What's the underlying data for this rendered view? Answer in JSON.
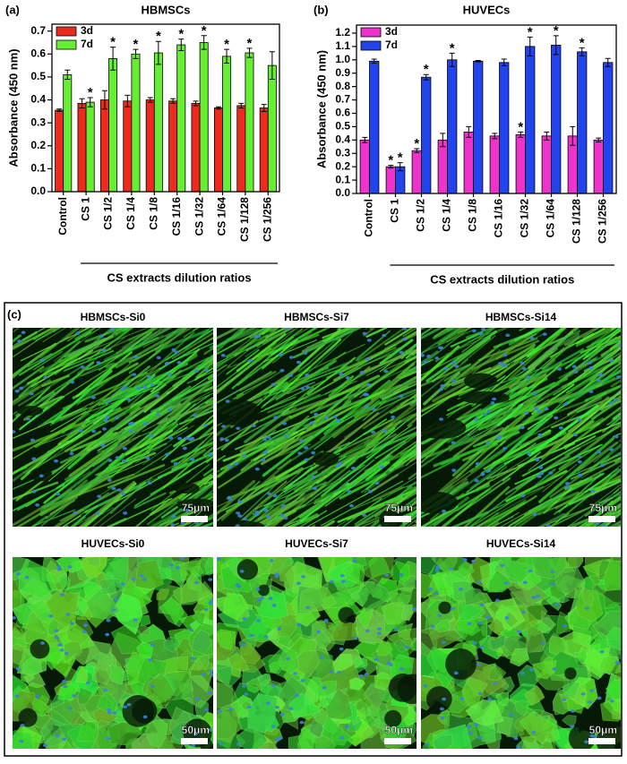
{
  "chart_data": [
    {
      "type": "bar",
      "panel_label": "(a)",
      "title": "HBMSCs",
      "y_label": "Absorbance (450 nm)",
      "x_label": "CS extracts dilution ratios",
      "categories": [
        "Control",
        "CS 1",
        "CS 1/2",
        "CS 1/4",
        "CS 1/8",
        "CS 1/16",
        "CS 1/32",
        "CS 1/64",
        "CS 1/128",
        "CS 1/256"
      ],
      "series": [
        {
          "name": "3d",
          "color": "#ee2a1c",
          "values": [
            0.355,
            0.385,
            0.4,
            0.395,
            0.4,
            0.395,
            0.385,
            0.365,
            0.375,
            0.365
          ],
          "errors": [
            0.005,
            0.02,
            0.04,
            0.025,
            0.01,
            0.01,
            0.01,
            0.005,
            0.01,
            0.015
          ],
          "markers": [
            null,
            null,
            null,
            null,
            null,
            null,
            null,
            null,
            null,
            null
          ]
        },
        {
          "name": "7d",
          "color": "#66ee33",
          "values": [
            0.51,
            0.39,
            0.58,
            0.6,
            0.605,
            0.64,
            0.65,
            0.59,
            0.605,
            0.55
          ],
          "errors": [
            0.02,
            0.02,
            0.05,
            0.02,
            0.05,
            0.025,
            0.03,
            0.03,
            0.02,
            0.06
          ],
          "markers": [
            null,
            "*",
            "*",
            "*",
            "*",
            "*",
            "*",
            "*",
            "*",
            null
          ]
        }
      ],
      "ylim": [
        0,
        0.73
      ],
      "yticks": [
        {
          "value": 0,
          "label": "0.0"
        },
        0.1,
        0.2,
        0.3,
        0.4,
        0.5,
        0.6,
        0.7
      ],
      "legend": "upper left"
    },
    {
      "type": "bar",
      "panel_label": "(b)",
      "title": "HUVECs",
      "y_label": "Absorbance (450 nm)",
      "x_label": "CS extracts dilution ratios",
      "categories": [
        "Control",
        "CS 1",
        "CS 1/2",
        "CS 1/4",
        "CS 1/8",
        "CS 1/16",
        "CS 1/32",
        "CS 1/64",
        "CS 1/128",
        "CS 1/256"
      ],
      "series": [
        {
          "name": "3d",
          "color": "#ee33cc",
          "values": [
            0.4,
            0.2,
            0.32,
            0.4,
            0.46,
            0.43,
            0.44,
            0.43,
            0.43,
            0.4
          ],
          "errors": [
            0.02,
            0.01,
            0.015,
            0.05,
            0.04,
            0.02,
            0.02,
            0.03,
            0.07,
            0.015
          ],
          "markers": [
            null,
            "*",
            "*",
            null,
            null,
            null,
            "*",
            null,
            null,
            null
          ]
        },
        {
          "name": "7d",
          "color": "#2244ee",
          "values": [
            0.99,
            0.2,
            0.87,
            1.0,
            0.99,
            0.98,
            1.1,
            1.11,
            1.06,
            0.98
          ],
          "errors": [
            0.015,
            0.03,
            0.02,
            0.05,
            0.005,
            0.025,
            0.07,
            0.07,
            0.03,
            0.03
          ],
          "markers": [
            null,
            "*",
            "*",
            "*",
            null,
            null,
            "*",
            "*",
            "*",
            null
          ]
        }
      ],
      "ylim": [
        0,
        1.26
      ],
      "yticks": [
        {
          "value": 0,
          "label": "0.0"
        },
        0.1,
        0.2,
        0.3,
        0.4,
        0.5,
        0.6,
        0.7,
        0.8,
        0.9,
        {
          "value": 1,
          "label": "1.0"
        },
        1.1,
        1.2
      ],
      "legend": "upper left"
    }
  ],
  "image_panel": {
    "label": "(c)",
    "images": [
      {
        "title": "HBMSCs-Si0",
        "scale_bar": "75μm"
      },
      {
        "title": "HBMSCs-Si7",
        "scale_bar": "75μm"
      },
      {
        "title": "HBMSCs-Si14",
        "scale_bar": "75μm"
      },
      {
        "title": "HUVECs-Si0",
        "scale_bar": "50μm"
      },
      {
        "title": "HUVECs-Si7",
        "scale_bar": "50μm"
      },
      {
        "title": "HUVECs-Si14",
        "scale_bar": "50μm"
      }
    ]
  }
}
